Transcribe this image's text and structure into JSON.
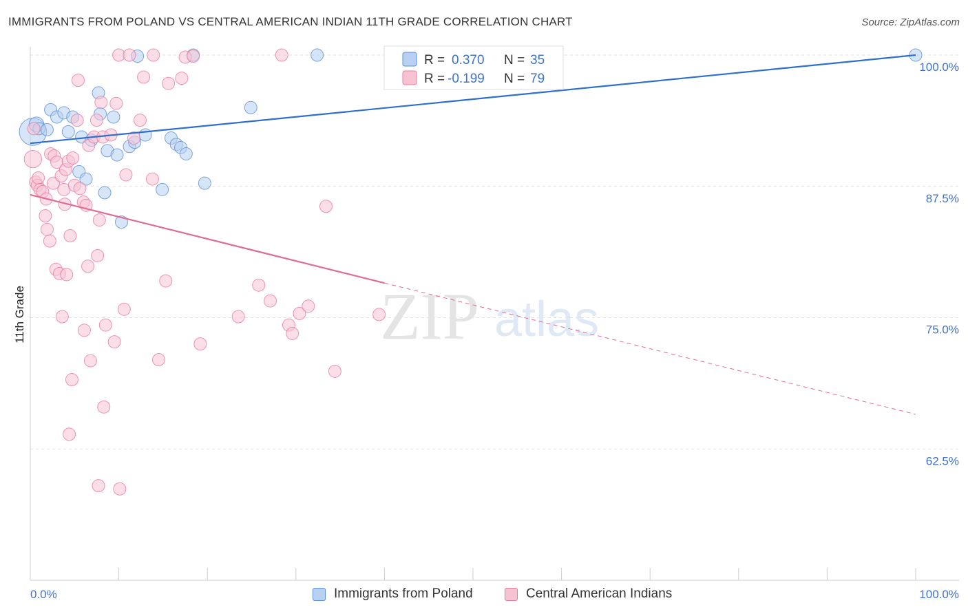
{
  "chart_data": {
    "type": "scatter",
    "title": "IMMIGRANTS FROM POLAND VS CENTRAL AMERICAN INDIAN 11TH GRADE CORRELATION CHART",
    "source": "Source: ZipAtlas.com",
    "xlabel": "",
    "ylabel": "11th Grade",
    "xlim": [
      0,
      100
    ],
    "ylim": [
      50,
      100
    ],
    "x_tick_labels": [
      "0.0%",
      "100.0%"
    ],
    "y_ticks": [
      62.5,
      75.0,
      87.5,
      100.0
    ],
    "y_tick_labels": [
      "62.5%",
      "75.0%",
      "87.5%",
      "100.0%"
    ],
    "grid": true,
    "watermark": "ZIPatlas",
    "legend": [
      {
        "label": "R =",
        "r": "0.370",
        "n_label": "N =",
        "n": "35"
      },
      {
        "label": "R =",
        "r": "-0.199",
        "n_label": "N =",
        "n": "79"
      }
    ],
    "series": [
      {
        "name": "Immigrants from Poland",
        "color": "#5b8fd6",
        "fill": "#b7d0f3",
        "trend": {
          "x": [
            0,
            100
          ],
          "y": [
            91.6,
            100.0
          ],
          "style": "solid"
        },
        "points": [
          [
            0.3,
            92.7,
            22
          ],
          [
            0.7,
            93.4,
            12
          ],
          [
            1.0,
            93.0,
            10
          ],
          [
            1.9,
            92.9,
            10
          ],
          [
            2.3,
            94.8,
            10
          ],
          [
            3.0,
            94.1,
            10
          ],
          [
            3.8,
            94.5,
            10
          ],
          [
            4.3,
            92.7,
            10
          ],
          [
            4.8,
            94.1,
            10
          ],
          [
            5.5,
            88.9,
            10
          ],
          [
            5.8,
            92.2,
            10
          ],
          [
            6.3,
            88.2,
            10
          ],
          [
            6.9,
            91.9,
            10
          ],
          [
            7.7,
            96.4,
            10
          ],
          [
            7.9,
            94.4,
            10
          ],
          [
            8.4,
            86.9,
            10
          ],
          [
            8.7,
            90.9,
            10
          ],
          [
            9.4,
            94.1,
            10
          ],
          [
            9.8,
            90.5,
            10
          ],
          [
            10.3,
            84.1,
            10
          ],
          [
            11.2,
            91.3,
            10
          ],
          [
            11.8,
            91.7,
            10
          ],
          [
            12.1,
            99.9,
            10
          ],
          [
            13.0,
            92.4,
            10
          ],
          [
            14.9,
            87.2,
            10
          ],
          [
            15.9,
            92.1,
            10
          ],
          [
            16.5,
            91.5,
            10
          ],
          [
            17.0,
            91.2,
            10
          ],
          [
            17.6,
            90.6,
            10
          ],
          [
            18.4,
            100.0,
            10
          ],
          [
            19.7,
            87.8,
            10
          ],
          [
            24.9,
            95.0,
            10
          ],
          [
            32.4,
            100.0,
            10
          ],
          [
            100.0,
            100.0,
            10
          ]
        ]
      },
      {
        "name": "Central American Indians",
        "color": "#e87aa0",
        "fill": "#f7c3d3",
        "trend": {
          "x": [
            0,
            40
          ],
          "y": [
            86.7,
            78.3
          ],
          "style": "solid",
          "extension": {
            "x": [
              40,
              100
            ],
            "y": [
              78.3,
              65.8
            ],
            "style": "dashed"
          }
        },
        "points": [
          [
            0.3,
            90.1,
            14
          ],
          [
            0.4,
            93.0,
            10
          ],
          [
            0.6,
            87.9,
            10
          ],
          [
            0.8,
            87.6,
            10
          ],
          [
            0.9,
            88.3,
            10
          ],
          [
            1.1,
            87.2,
            10
          ],
          [
            1.4,
            87.0,
            10
          ],
          [
            1.7,
            84.7,
            10
          ],
          [
            1.8,
            86.3,
            10
          ],
          [
            1.9,
            83.4,
            10
          ],
          [
            2.2,
            82.3,
            10
          ],
          [
            2.3,
            90.6,
            10
          ],
          [
            2.6,
            87.8,
            10
          ],
          [
            2.7,
            90.4,
            10
          ],
          [
            2.9,
            79.6,
            10
          ],
          [
            3.0,
            89.8,
            10
          ],
          [
            3.3,
            79.2,
            10
          ],
          [
            3.5,
            88.5,
            10
          ],
          [
            3.6,
            75.1,
            10
          ],
          [
            3.8,
            87.2,
            10
          ],
          [
            3.9,
            85.8,
            10
          ],
          [
            4.0,
            89.1,
            10
          ],
          [
            4.1,
            79.1,
            10
          ],
          [
            4.3,
            89.9,
            10
          ],
          [
            4.4,
            63.9,
            10
          ],
          [
            4.5,
            82.8,
            10
          ],
          [
            4.7,
            69.1,
            10
          ],
          [
            4.8,
            90.2,
            10
          ],
          [
            5.0,
            87.6,
            10
          ],
          [
            5.3,
            93.8,
            10
          ],
          [
            5.4,
            97.6,
            10
          ],
          [
            5.6,
            87.3,
            10
          ],
          [
            6.0,
            86.0,
            10
          ],
          [
            6.1,
            73.8,
            10
          ],
          [
            6.3,
            85.7,
            10
          ],
          [
            6.5,
            79.9,
            10
          ],
          [
            6.6,
            91.4,
            10
          ],
          [
            6.8,
            70.9,
            10
          ],
          [
            7.2,
            92.2,
            10
          ],
          [
            7.5,
            93.8,
            10
          ],
          [
            7.6,
            80.9,
            10
          ],
          [
            7.7,
            59.0,
            10
          ],
          [
            7.8,
            84.3,
            10
          ],
          [
            8.0,
            95.5,
            10
          ],
          [
            8.2,
            92.2,
            10
          ],
          [
            8.3,
            66.5,
            10
          ],
          [
            8.5,
            74.3,
            10
          ],
          [
            9.1,
            92.4,
            10
          ],
          [
            9.5,
            72.7,
            10
          ],
          [
            9.7,
            95.4,
            10
          ],
          [
            10.0,
            100.0,
            10
          ],
          [
            10.1,
            58.7,
            10
          ],
          [
            10.6,
            75.8,
            10
          ],
          [
            10.8,
            88.6,
            10
          ],
          [
            11.2,
            100.0,
            10
          ],
          [
            11.7,
            92.1,
            10
          ],
          [
            12.4,
            93.8,
            10
          ],
          [
            12.8,
            97.9,
            10
          ],
          [
            13.8,
            88.2,
            10
          ],
          [
            13.9,
            100.0,
            10
          ],
          [
            14.5,
            71.0,
            10
          ],
          [
            15.3,
            78.5,
            10
          ],
          [
            15.6,
            97.3,
            10
          ],
          [
            17.1,
            97.8,
            10
          ],
          [
            17.5,
            99.8,
            10
          ],
          [
            18.4,
            99.9,
            10
          ],
          [
            19.2,
            72.5,
            10
          ],
          [
            23.5,
            75.1,
            10
          ],
          [
            25.8,
            78.1,
            10
          ],
          [
            27.1,
            76.6,
            10
          ],
          [
            28.4,
            100.0,
            10
          ],
          [
            29.2,
            74.3,
            10
          ],
          [
            29.6,
            73.5,
            10
          ],
          [
            30.4,
            75.4,
            10
          ],
          [
            31.4,
            76.1,
            10
          ],
          [
            33.4,
            85.6,
            10
          ],
          [
            34.4,
            69.9,
            10
          ],
          [
            39.4,
            75.3,
            10
          ]
        ]
      }
    ]
  }
}
